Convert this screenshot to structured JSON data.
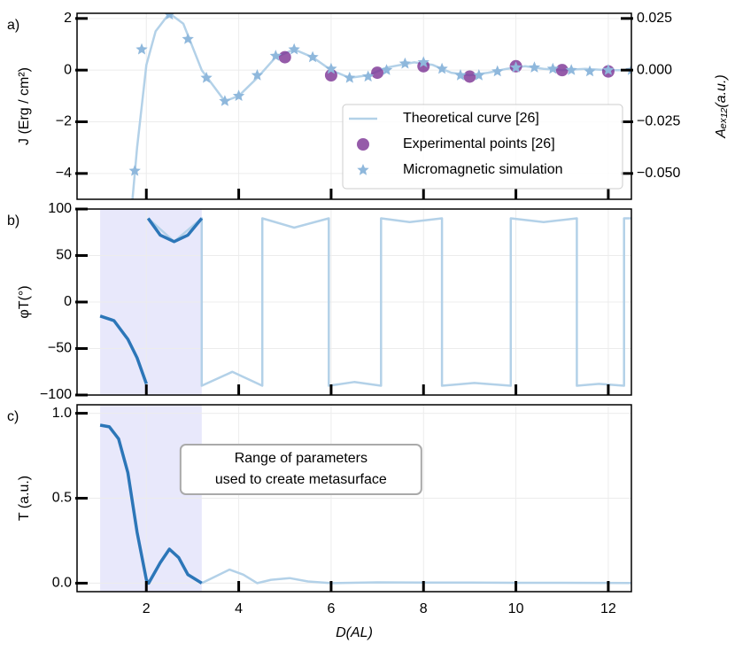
{
  "chart_data": [
    {
      "type": "line",
      "panel_label": "a)",
      "ylabel": "J (Erg / cm²)",
      "y2label": "Aₑₓ₁₂(a.u.)",
      "xlim": [
        0.5,
        12.5
      ],
      "ylim": [
        -5,
        2.2
      ],
      "y2lim": [
        -0.0625,
        0.0275
      ],
      "grid": true,
      "legend": "lower right",
      "yticks": [
        2,
        0,
        {
          "value": -2,
          "label": "−2"
        },
        {
          "value": -4,
          "label": "−4"
        }
      ],
      "y2ticks": [
        0.025,
        {
          "value": 0,
          "label": "0.000"
        },
        {
          "value": -0.025,
          "label": "−0.025"
        },
        {
          "value": -0.05,
          "label": "−0.050"
        }
      ],
      "series": [
        {
          "name": "Theoretical curve [26]",
          "mark": "line",
          "color": "#b3d1e8",
          "x": [
            1.7,
            1.8,
            2.0,
            2.2,
            2.5,
            2.8,
            3.2,
            3.7,
            4.0,
            4.4,
            4.8,
            5.2,
            5.6,
            6.0,
            6.4,
            6.8,
            7.2,
            7.8,
            8.2,
            8.6,
            9.0,
            9.4,
            9.8,
            10.2,
            10.6,
            11.0,
            11.5,
            12.0,
            12.5
          ],
          "values": [
            -5,
            -3.0,
            0.2,
            1.5,
            2.2,
            1.8,
            0.0,
            -1.2,
            -1.0,
            -0.3,
            0.5,
            0.8,
            0.5,
            0.0,
            -0.3,
            -0.2,
            0.1,
            0.3,
            0.2,
            -0.1,
            -0.2,
            -0.1,
            0.05,
            0.15,
            0.05,
            0.0,
            0.05,
            0.0,
            0.0
          ]
        },
        {
          "name": "Experimental points [26]",
          "mark": "circle",
          "color": "#7b3294",
          "x": [
            5,
            6,
            7,
            8,
            9,
            10,
            11,
            12
          ],
          "values": [
            0.5,
            -0.2,
            -0.1,
            0.15,
            -0.25,
            0.15,
            0.0,
            -0.05
          ]
        },
        {
          "name": "Micromagnetic simulation",
          "mark": "star",
          "color": "#8fb8dc",
          "x": [
            1.75,
            1.9,
            2.5,
            2.9,
            3.3,
            3.7,
            4.0,
            4.4,
            4.8,
            5.2,
            5.6,
            6.0,
            6.4,
            6.8,
            7.2,
            7.6,
            8.0,
            8.4,
            8.8,
            9.2,
            9.6,
            10.0,
            10.4,
            10.8,
            11.2,
            11.6,
            12.0,
            12.5
          ],
          "values": [
            -3.9,
            0.8,
            2.15,
            1.2,
            -0.3,
            -1.2,
            -1.0,
            -0.2,
            0.55,
            0.8,
            0.5,
            0.05,
            -0.3,
            -0.25,
            0.0,
            0.25,
            0.3,
            0.05,
            -0.2,
            -0.2,
            -0.05,
            0.1,
            0.1,
            0.05,
            0.0,
            -0.05,
            0.0,
            0.0
          ]
        }
      ]
    },
    {
      "type": "line",
      "panel_label": "b)",
      "ylabel": "φT(°)",
      "xlim": [
        0.5,
        12.5
      ],
      "ylim": [
        -100,
        100
      ],
      "grid": true,
      "highlight_span": [
        1,
        3.2
      ],
      "yticks": [
        100,
        50,
        0,
        {
          "value": -50,
          "label": "−50"
        },
        {
          "value": -100,
          "label": "−100"
        }
      ],
      "series": [
        {
          "mark": "line",
          "color": "#b3d1e8",
          "x": [
            2.04,
            2.6,
            3.2,
            3.2,
            3.86,
            4.51,
            4.51,
            5.2,
            5.95,
            5.95,
            6.5,
            7.08,
            7.08,
            7.7,
            8.4,
            8.4,
            9.1,
            9.89,
            9.89,
            10.6,
            11.32,
            11.32,
            11.8,
            12.34,
            12.34,
            12.5
          ],
          "values": [
            90,
            65,
            90,
            -90,
            -75,
            -90,
            90,
            80,
            90,
            -90,
            -86,
            -90,
            90,
            86,
            90,
            -90,
            -87,
            -90,
            90,
            86,
            90,
            -90,
            -88,
            -90,
            90,
            90
          ]
        },
        {
          "mark": "line",
          "color": "#2c76b8",
          "width": 3.5,
          "x": [
            1.0,
            1.3,
            1.6,
            1.8,
            2.0,
            null,
            2.04,
            2.3,
            2.6,
            2.9,
            3.2
          ],
          "values": [
            -15,
            -20,
            -40,
            -60,
            -88,
            null,
            90,
            72,
            65,
            72,
            90
          ]
        }
      ]
    },
    {
      "type": "line",
      "panel_label": "c)",
      "ylabel": "T (a.u.)",
      "xlabel": "D(AL)",
      "xlim": [
        0.5,
        12.5
      ],
      "ylim": [
        -0.05,
        1.05
      ],
      "grid": true,
      "highlight_span": [
        1,
        3.2
      ],
      "annotation": [
        "Range of parameters",
        "used to create metasurface"
      ],
      "xticks": [
        2,
        4,
        6,
        8,
        10,
        12
      ],
      "yticks": [
        {
          "value": 1,
          "label": "1.0"
        },
        0.5,
        {
          "value": 0,
          "label": "0.0"
        }
      ],
      "series": [
        {
          "mark": "line",
          "color": "#b3d1e8",
          "x": [
            3.2,
            3.5,
            3.8,
            4.1,
            4.4,
            4.7,
            5.1,
            5.5,
            6.0,
            7.0,
            8.0,
            9.0,
            10.0,
            11.0,
            12.5
          ],
          "values": [
            0.0,
            0.04,
            0.08,
            0.05,
            0.0,
            0.02,
            0.03,
            0.01,
            0.0,
            0.005,
            0.003,
            0.003,
            0.002,
            0.002,
            0.001
          ]
        },
        {
          "mark": "line",
          "color": "#2c76b8",
          "width": 3.5,
          "x": [
            1.0,
            1.2,
            1.4,
            1.6,
            1.8,
            2.0,
            2.05,
            2.3,
            2.5,
            2.7,
            2.9,
            3.2
          ],
          "values": [
            0.93,
            0.92,
            0.85,
            0.65,
            0.3,
            0.02,
            0.0,
            0.12,
            0.2,
            0.15,
            0.05,
            0.0
          ]
        }
      ]
    }
  ]
}
